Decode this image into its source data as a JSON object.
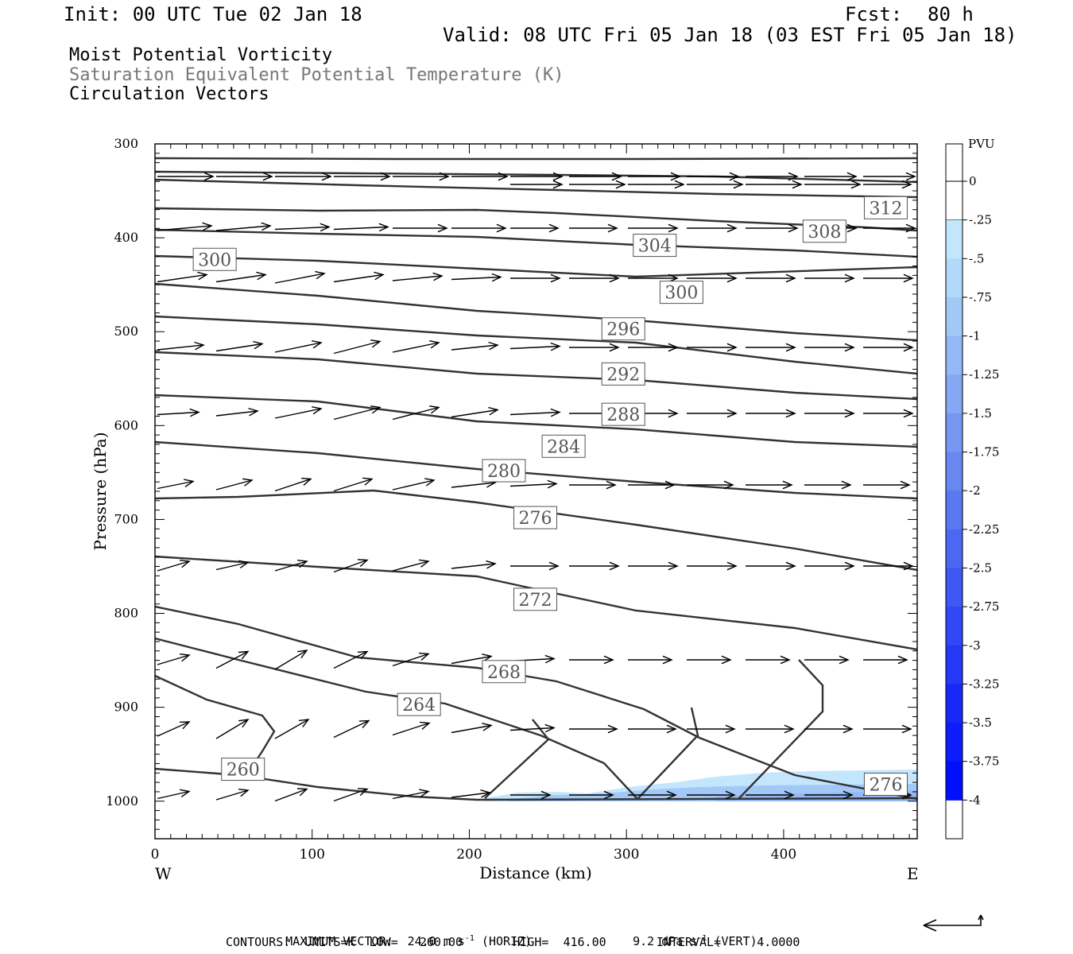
{
  "header": {
    "init": "Init: 00 UTC Tue 02 Jan 18",
    "fcst_label": "Fcst:",
    "fcst_value": "80 h",
    "valid": "Valid: 08 UTC Fri 05 Jan 18 (03 EST Fri 05 Jan 18)"
  },
  "fields": {
    "line1": "Moist Potential Vorticity",
    "line2": "Saturation Equivalent Potential Temperature (K)",
    "line3": "Circulation Vectors"
  },
  "footer": {
    "max_vector": "MAXIMUM VECTOR:  24.0 m s",
    "sup1": "-1",
    "horiz": " (HORIZ)",
    "vert_pre": "9.2 dPa s",
    "sup2": "-1",
    "vert": " (VERT)",
    "contours": "CONTOURS:  UNITS=K  LOW=   260.00       HIGH=  416.00       INTERVAL=     4.0000"
  },
  "chart_data": {
    "type": "cross-section",
    "xlabel": "Distance (km)",
    "ylabel": "Pressure (hPa)",
    "xlim": [
      0,
      485
    ],
    "ylim": [
      1040,
      300
    ],
    "x_ticks": [
      "0",
      "100",
      "200",
      "300",
      "400"
    ],
    "x_tick_values": [
      0,
      100,
      200,
      300,
      400
    ],
    "y_ticks": [
      "300",
      "400",
      "500",
      "600",
      "700",
      "800",
      "900",
      "1000"
    ],
    "y_tick_values": [
      300,
      400,
      500,
      600,
      700,
      800,
      900,
      1000
    ],
    "west_label": "W",
    "east_label": "E",
    "colorbar": {
      "title": "PVU",
      "labels": [
        "0",
        "-.25",
        "-.5",
        "-.75",
        "-1",
        "-1.25",
        "-1.5",
        "-1.75",
        "-2",
        "-2.25",
        "-2.5",
        "-2.75",
        "-3",
        "-3.25",
        "-3.5",
        "-3.75",
        "-4"
      ],
      "colors": [
        "#ffffff",
        "#c4e6fc",
        "#b2d8fa",
        "#a2c8f8",
        "#92b8f6",
        "#84a8f4",
        "#7698f2",
        "#6888f0",
        "#5a78f0",
        "#4c68f2",
        "#3e58f4",
        "#3048f6",
        "#2438f6",
        "#1828f8",
        "#0c1cfa",
        "#0010fc"
      ]
    },
    "contour_labels": [
      {
        "text": "312",
        "x": 465,
        "p": 368
      },
      {
        "text": "308",
        "x": 426,
        "p": 393
      },
      {
        "text": "304",
        "x": 318,
        "p": 408
      },
      {
        "text": "300",
        "x": 38,
        "p": 423
      },
      {
        "text": "300",
        "x": 335,
        "p": 458
      },
      {
        "text": "296",
        "x": 298,
        "p": 497
      },
      {
        "text": "292",
        "x": 298,
        "p": 545
      },
      {
        "text": "288",
        "x": 298,
        "p": 588
      },
      {
        "text": "284",
        "x": 260,
        "p": 622
      },
      {
        "text": "280",
        "x": 222,
        "p": 648
      },
      {
        "text": "276",
        "x": 242,
        "p": 698
      },
      {
        "text": "272",
        "x": 242,
        "p": 785
      },
      {
        "text": "268",
        "x": 222,
        "p": 862
      },
      {
        "text": "264",
        "x": 168,
        "p": 897
      },
      {
        "text": "260",
        "x": 56,
        "p": 966
      },
      {
        "text": "276",
        "x": 465,
        "p": 982
      }
    ]
  }
}
